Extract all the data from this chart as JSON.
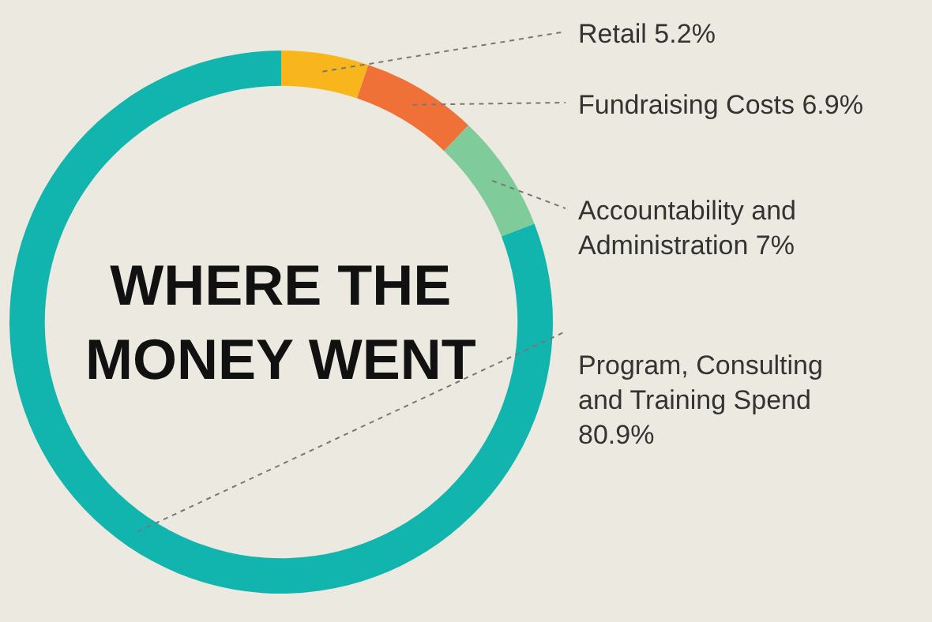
{
  "chart_data": {
    "type": "donut",
    "title": "WHERE THE MONEY WENT",
    "categories": [
      "Retail",
      "Fundraising Costs",
      "Accountability and Administration",
      "Program, Consulting and Training Spend"
    ],
    "values": [
      5.2,
      6.9,
      7,
      80.9
    ],
    "value_labels": [
      "5.2%",
      "6.9%",
      "7%",
      "80.9%"
    ],
    "colors": [
      "#f9b51c",
      "#f07137",
      "#7fcb9a",
      "#12b5ad"
    ],
    "legend": false
  }
}
